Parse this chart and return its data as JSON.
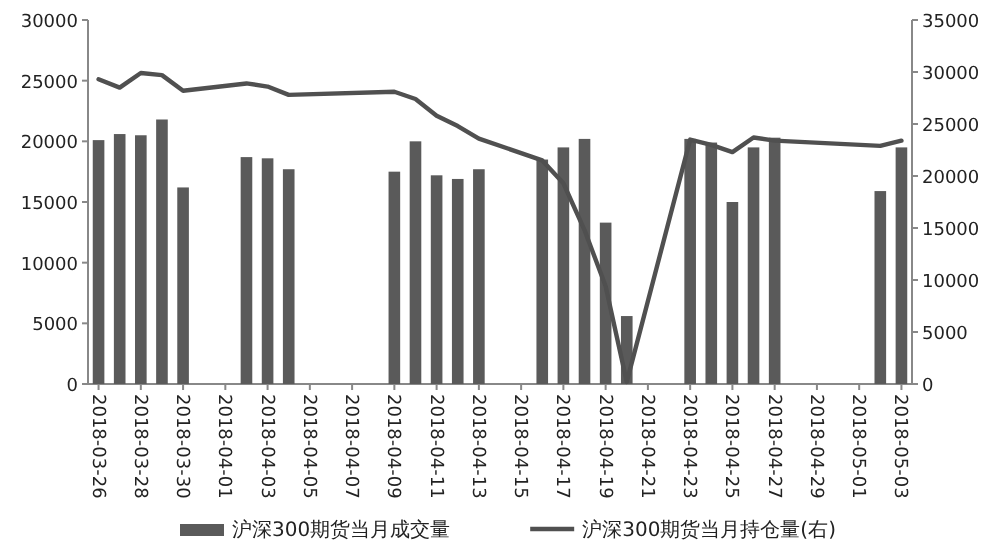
{
  "chart_data": {
    "type": "bar",
    "legend": "bottom",
    "grid": false,
    "xlim": [
      "2018-03-25T12:00",
      "2018-05-03T12:00"
    ],
    "xticks": [
      "2018-03-26",
      "2018-03-28",
      "2018-03-30",
      "2018-04-01",
      "2018-04-03",
      "2018-04-05",
      "2018-04-07",
      "2018-04-09",
      "2018-04-11",
      "2018-04-13",
      "2018-04-15",
      "2018-04-17",
      "2018-04-19",
      "2018-04-21",
      "2018-04-23",
      "2018-04-25",
      "2018-04-27",
      "2018-04-29",
      "2018-05-01",
      "2018-05-03"
    ],
    "ylim": [
      0,
      30000
    ],
    "yticks": [
      0,
      5000,
      10000,
      15000,
      20000,
      25000,
      30000
    ],
    "y2lim": [
      0,
      35000
    ],
    "y2ticks": [
      0,
      5000,
      10000,
      15000,
      20000,
      25000,
      30000,
      35000
    ],
    "series": [
      {
        "name": "沪深300期货当月成交量",
        "color": "#5a5a5a",
        "x": [
          "2018-03-26",
          "2018-03-27",
          "2018-03-28",
          "2018-03-29",
          "2018-03-30",
          "2018-04-02",
          "2018-04-03",
          "2018-04-04",
          "2018-04-09",
          "2018-04-10",
          "2018-04-11",
          "2018-04-12",
          "2018-04-13",
          "2018-04-16",
          "2018-04-17",
          "2018-04-18",
          "2018-04-19",
          "2018-04-20",
          "2018-04-23",
          "2018-04-24",
          "2018-04-25",
          "2018-04-26",
          "2018-04-27",
          "2018-05-02",
          "2018-05-03"
        ],
        "values": [
          20100,
          20600,
          20500,
          21800,
          16200,
          18700,
          18600,
          17700,
          17500,
          20000,
          17200,
          16900,
          17700,
          18500,
          19500,
          20200,
          13300,
          5600,
          20200,
          19900,
          15000,
          19500,
          20300,
          15900,
          19500
        ]
      },
      {
        "name": "沪深300期货当月持仓量(右)",
        "type": "line",
        "axis": "y2",
        "color": "#505050",
        "x": [
          "2018-03-26",
          "2018-03-27",
          "2018-03-28",
          "2018-03-29",
          "2018-03-30",
          "2018-04-02",
          "2018-04-03",
          "2018-04-04",
          "2018-04-09",
          "2018-04-10",
          "2018-04-11",
          "2018-04-12",
          "2018-04-13",
          "2018-04-16",
          "2018-04-17",
          "2018-04-18",
          "2018-04-19",
          "2018-04-20",
          "2018-04-23",
          "2018-04-24",
          "2018-04-25",
          "2018-04-26",
          "2018-04-27",
          "2018-05-02",
          "2018-05-03"
        ],
        "values": [
          29300,
          28500,
          29900,
          29700,
          28200,
          28900,
          28600,
          27800,
          28100,
          27400,
          25800,
          24800,
          23600,
          21500,
          19300,
          14800,
          9400,
          200,
          23500,
          23000,
          22300,
          23700,
          23400,
          22900,
          23400
        ]
      }
    ]
  }
}
